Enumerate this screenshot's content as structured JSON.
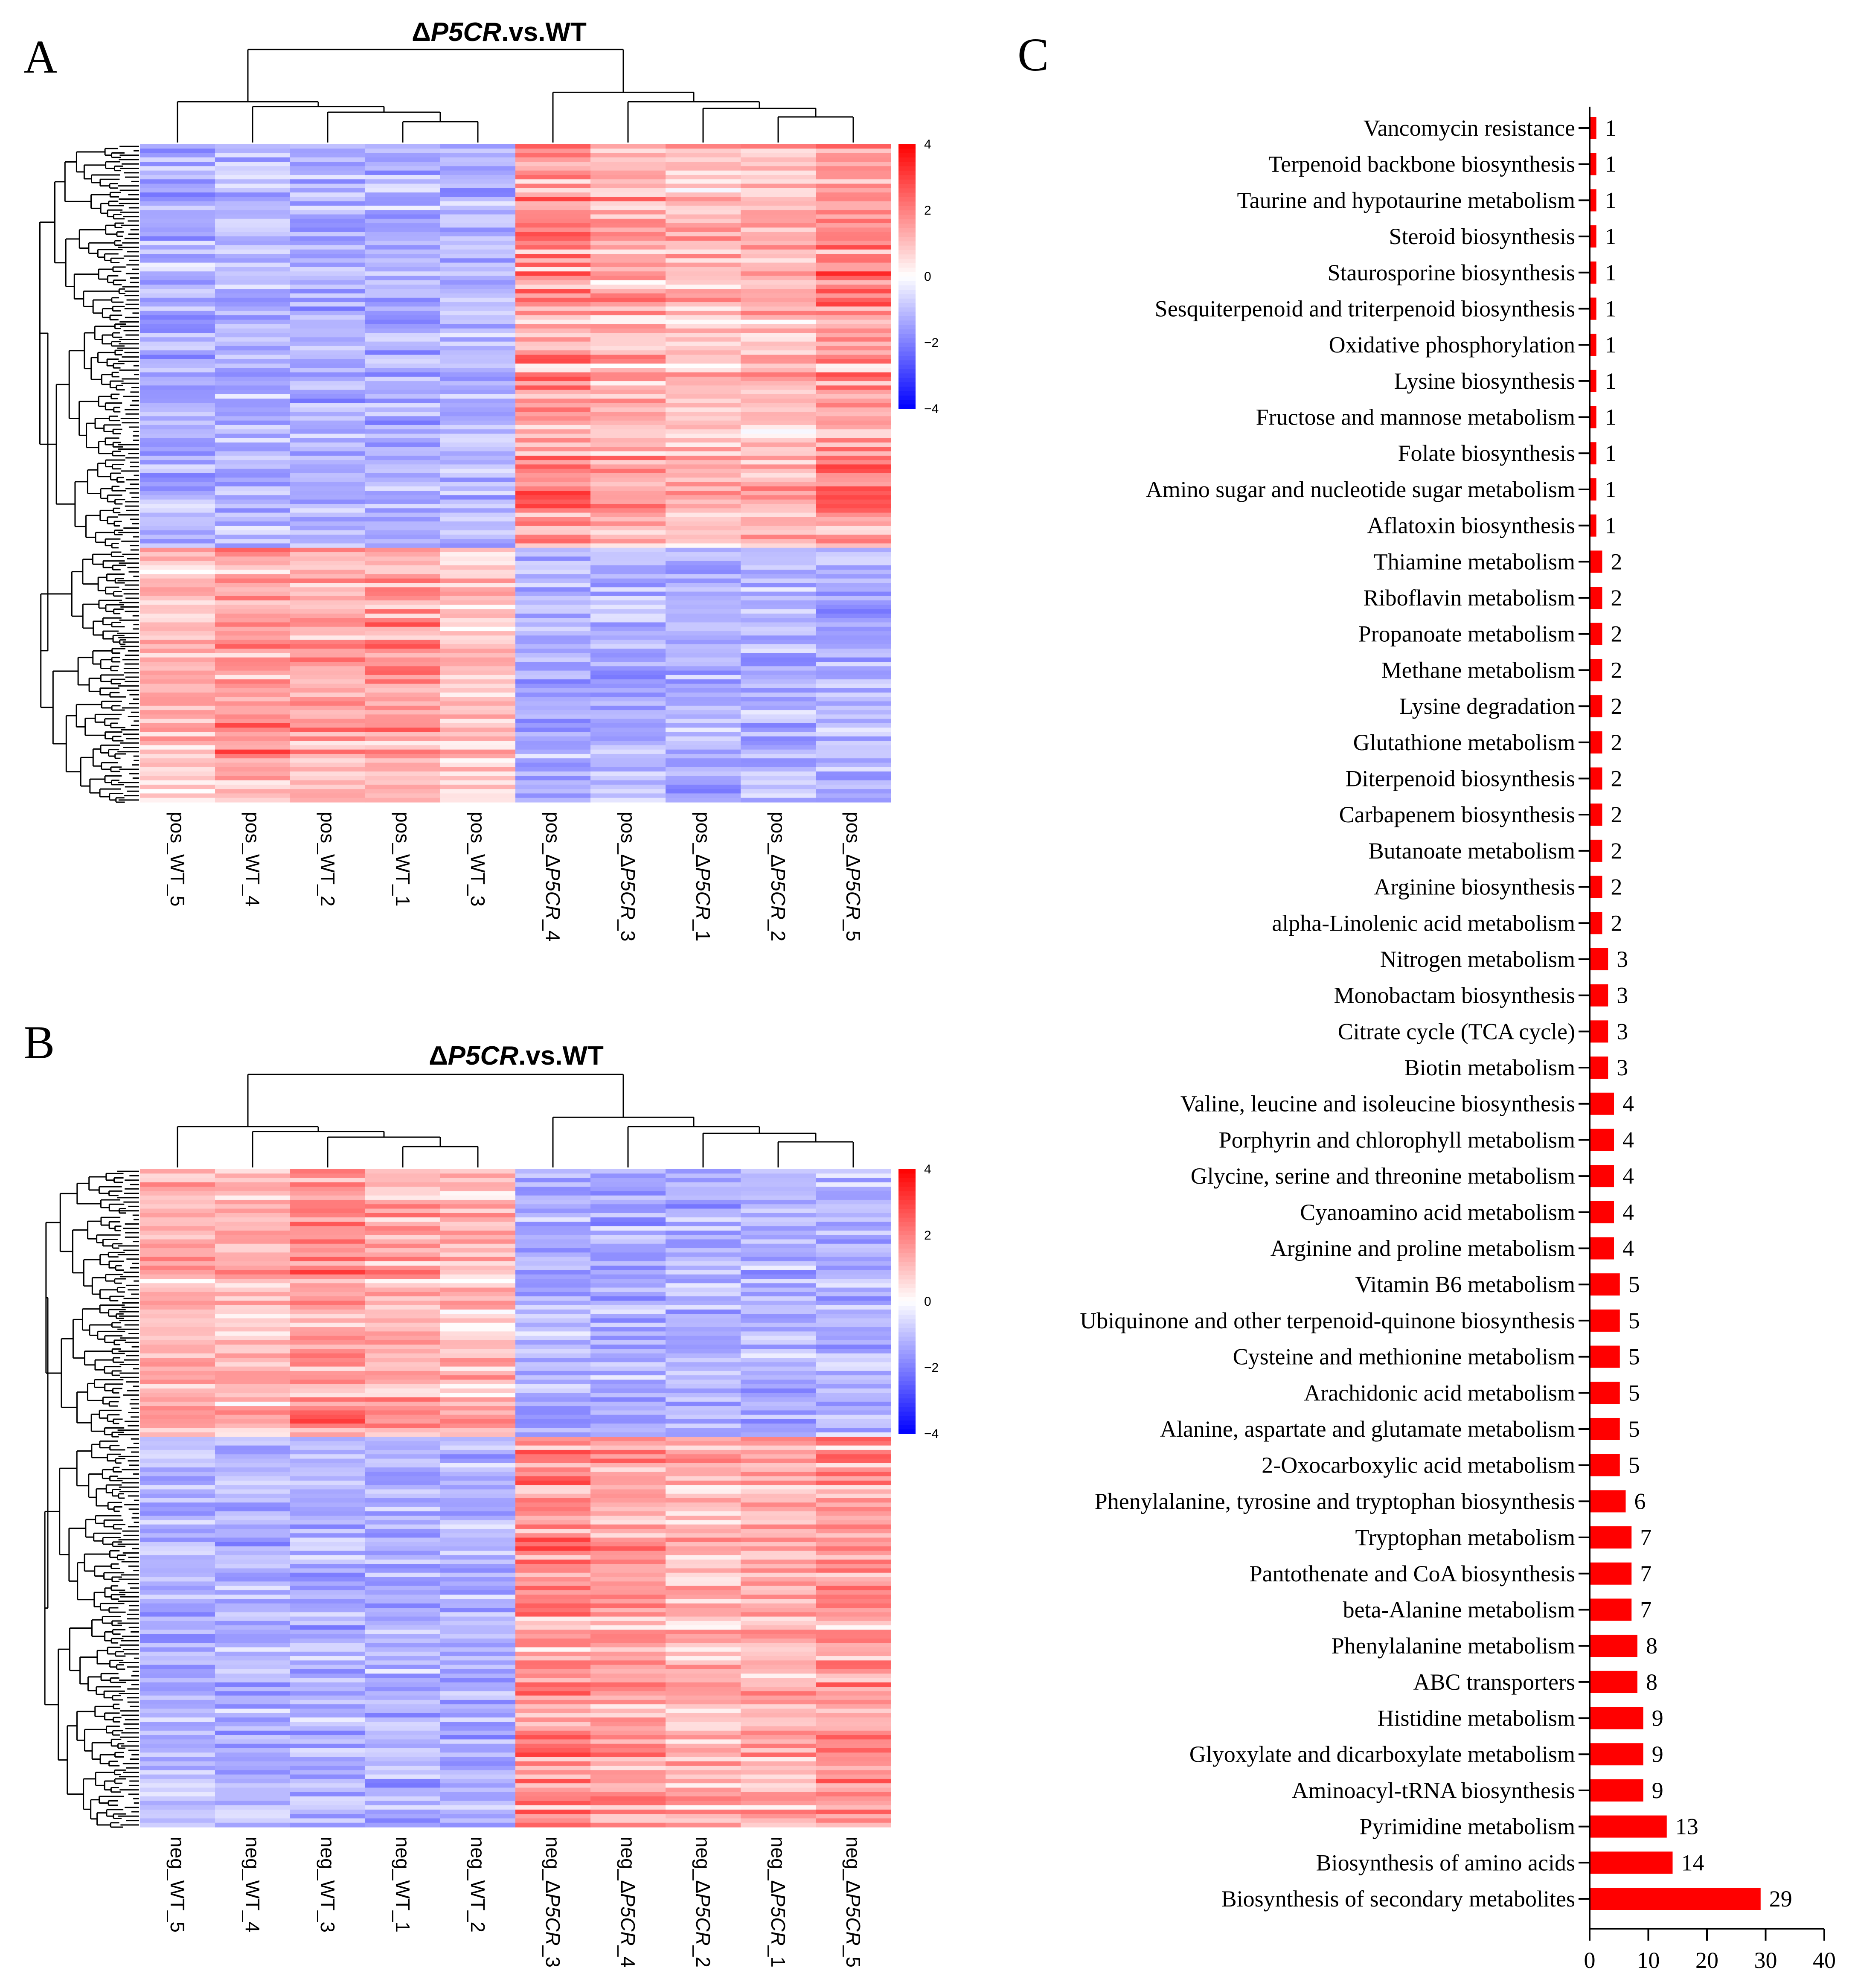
{
  "panels": {
    "A": "A",
    "B": "B",
    "C": "C"
  },
  "heatmap_A": {
    "title_prefix": "Δ",
    "title_italic": "P5CR",
    "title_suffix": ".vs.WT",
    "columns": [
      {
        "prefix": "pos_WT_5",
        "italic": "",
        "suffix": ""
      },
      {
        "prefix": "pos_WT_4",
        "italic": "",
        "suffix": ""
      },
      {
        "prefix": "pos_WT_2",
        "italic": "",
        "suffix": ""
      },
      {
        "prefix": "pos_WT_1",
        "italic": "",
        "suffix": ""
      },
      {
        "prefix": "pos_WT_3",
        "italic": "",
        "suffix": ""
      },
      {
        "prefix": "pos_Δ",
        "italic": "P5CR",
        "suffix": "_4"
      },
      {
        "prefix": "pos_Δ",
        "italic": "P5CR",
        "suffix": "_3"
      },
      {
        "prefix": "pos_Δ",
        "italic": "P5CR",
        "suffix": "_1"
      },
      {
        "prefix": "pos_Δ",
        "italic": "P5CR",
        "suffix": "_2"
      },
      {
        "prefix": "pos_Δ",
        "italic": "P5CR",
        "suffix": "_5"
      }
    ],
    "scale": {
      "max": 4,
      "min": -4,
      "ticks": [
        "4",
        "2",
        "0",
        "−2",
        "−4"
      ]
    },
    "high_color": "#ff0000",
    "low_color": "#0000ff",
    "mid_color": "#ffffff",
    "block_split": 0.61,
    "top_group": "KO",
    "bottom_group": "WT"
  },
  "heatmap_B": {
    "title_prefix": "Δ",
    "title_italic": "P5CR",
    "title_suffix": ".vs.WT",
    "columns": [
      {
        "prefix": "neg_WT_5",
        "italic": "",
        "suffix": ""
      },
      {
        "prefix": "neg_WT_4",
        "italic": "",
        "suffix": ""
      },
      {
        "prefix": "neg_WT_3",
        "italic": "",
        "suffix": ""
      },
      {
        "prefix": "neg_WT_1",
        "italic": "",
        "suffix": ""
      },
      {
        "prefix": "neg_WT_2",
        "italic": "",
        "suffix": ""
      },
      {
        "prefix": "neg_Δ",
        "italic": "P5CR",
        "suffix": "_3"
      },
      {
        "prefix": "neg_Δ",
        "italic": "P5CR",
        "suffix": "_4"
      },
      {
        "prefix": "neg_Δ",
        "italic": "P5CR",
        "suffix": "_2"
      },
      {
        "prefix": "neg_Δ",
        "italic": "P5CR",
        "suffix": "_1"
      },
      {
        "prefix": "neg_Δ",
        "italic": "P5CR",
        "suffix": "_5"
      }
    ],
    "scale": {
      "max": 4,
      "min": -4,
      "ticks": [
        "4",
        "2",
        "0",
        "−2",
        "−4"
      ]
    },
    "high_color": "#ff0000",
    "low_color": "#0000ff",
    "mid_color": "#ffffff",
    "block_split": 0.41,
    "top_group": "WT",
    "bottom_group": "KO"
  },
  "chart_data": {
    "type": "bar",
    "orientation": "horizontal",
    "bar_color": "#ff0000",
    "xlim": [
      0,
      40
    ],
    "xticks": [
      0,
      10,
      20,
      30,
      40
    ],
    "categories": [
      "Vancomycin resistance",
      "Terpenoid backbone biosynthesis",
      "Taurine and hypotaurine metabolism",
      "Steroid biosynthesis",
      "Staurosporine biosynthesis",
      "Sesquiterpenoid and triterpenoid biosynthesis",
      "Oxidative phosphorylation",
      "Lysine biosynthesis",
      "Fructose and mannose metabolism",
      "Folate biosynthesis",
      "Amino sugar and nucleotide sugar metabolism",
      "Aflatoxin biosynthesis",
      "Thiamine metabolism",
      "Riboflavin metabolism",
      "Propanoate metabolism",
      "Methane metabolism",
      "Lysine degradation",
      "Glutathione metabolism",
      "Diterpenoid biosynthesis",
      "Carbapenem biosynthesis",
      "Butanoate metabolism",
      "Arginine biosynthesis",
      "alpha-Linolenic acid metabolism",
      "Nitrogen metabolism",
      "Monobactam biosynthesis",
      "Citrate cycle (TCA cycle)",
      "Biotin metabolism",
      "Valine, leucine and isoleucine biosynthesis",
      "Porphyrin and chlorophyll metabolism",
      "Glycine, serine and threonine metabolism",
      "Cyanoamino acid metabolism",
      "Arginine and proline metabolism",
      "Vitamin B6 metabolism",
      "Ubiquinone and other terpenoid-quinone biosynthesis",
      "Cysteine and methionine metabolism",
      "Arachidonic acid metabolism",
      "Alanine, aspartate and glutamate metabolism",
      "2-Oxocarboxylic acid metabolism",
      "Phenylalanine, tyrosine and tryptophan biosynthesis",
      "Tryptophan metabolism",
      "Pantothenate and CoA biosynthesis",
      "beta-Alanine metabolism",
      "Phenylalanine metabolism",
      "ABC transporters",
      "Histidine metabolism",
      "Glyoxylate and dicarboxylate metabolism",
      "Aminoacyl-tRNA biosynthesis",
      "Pyrimidine metabolism",
      "Biosynthesis of amino acids",
      "Biosynthesis of secondary metabolites"
    ],
    "values": [
      1,
      1,
      1,
      1,
      1,
      1,
      1,
      1,
      1,
      1,
      1,
      1,
      2,
      2,
      2,
      2,
      2,
      2,
      2,
      2,
      2,
      2,
      2,
      3,
      3,
      3,
      3,
      4,
      4,
      4,
      4,
      4,
      5,
      5,
      5,
      5,
      5,
      5,
      6,
      7,
      7,
      7,
      8,
      8,
      9,
      9,
      9,
      13,
      14,
      29
    ],
    "title": "",
    "xlabel": "",
    "ylabel": ""
  }
}
